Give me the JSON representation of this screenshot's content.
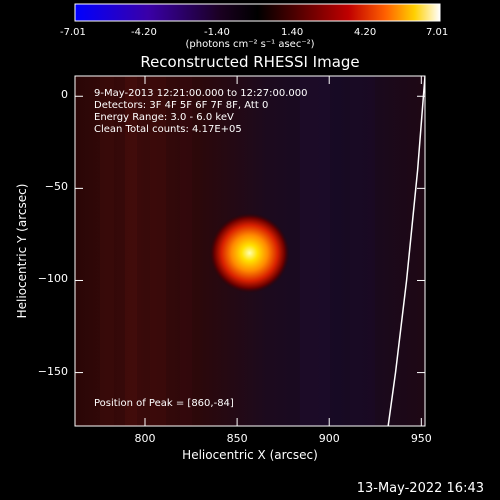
{
  "colorbar": {
    "tick_labels": [
      "-7.01",
      "-4.20",
      "-1.40",
      "1.40",
      "4.20",
      "7.01"
    ],
    "unit_label": "(photons cm⁻² s⁻¹ asec⁻²)",
    "min": -7.01,
    "max": 7.01,
    "colors": [
      "#0000ff",
      "#3a00a8",
      "#1a0020",
      "#000000",
      "#4a0000",
      "#b00000",
      "#ff3000",
      "#ff9a00",
      "#ffe800",
      "#ffffff"
    ]
  },
  "chart_data": {
    "type": "heatmap",
    "title": "Reconstructed RHESSI Image",
    "xlabel": "Heliocentric X (arcsec)",
    "ylabel": "Heliocentric Y (arcsec)",
    "xlim": [
      762,
      952
    ],
    "ylim": [
      -179,
      11
    ],
    "x_ticks": [
      800,
      850,
      900,
      950
    ],
    "y_ticks": [
      0,
      -50,
      -100,
      -150
    ],
    "peak": {
      "x": 860,
      "y": -84
    },
    "annotations": [
      "9-May-2013 12:21:00.000 to 12:27:00.000",
      "Detectors: 3F 4F 5F 6F 7F 8F, Att 0",
      "Energy Range: 3.0 - 6.0 keV",
      "Clean    Total counts: 4.17E+05"
    ],
    "peak_label": "Position of Peak = [860,-84]",
    "limb": [
      [
        952,
        11
      ],
      [
        948,
        -40
      ],
      [
        942,
        -100
      ],
      [
        936,
        -150
      ],
      [
        932,
        -179
      ]
    ]
  },
  "footer": {
    "timestamp": "13-May-2022 16:43"
  }
}
